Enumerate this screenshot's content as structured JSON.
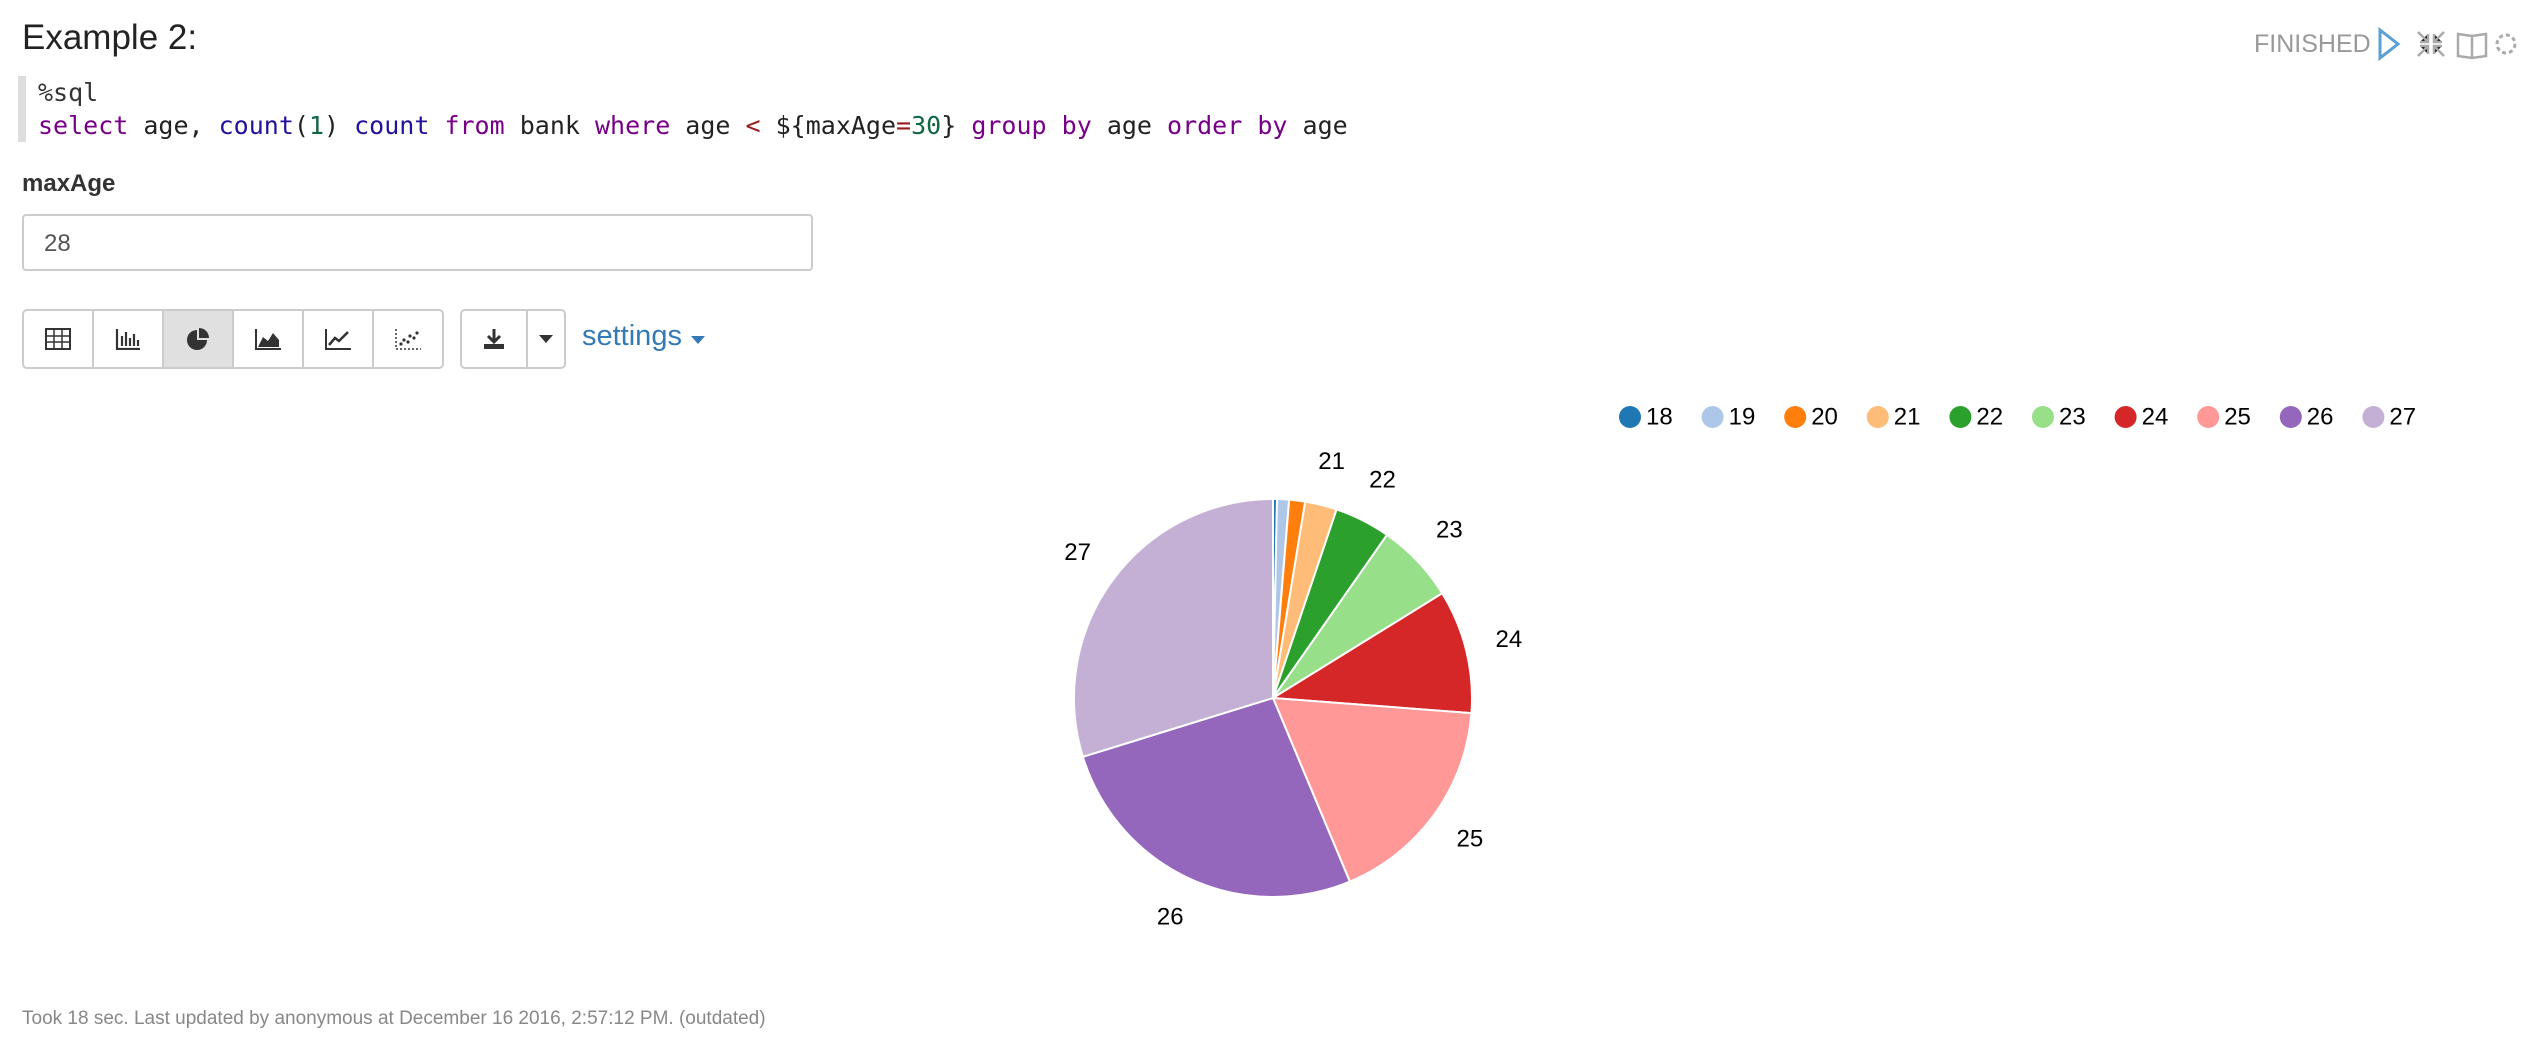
{
  "header": {
    "title": "Example 2:",
    "status": "FINISHED"
  },
  "code": {
    "lines": [
      [
        {
          "text": "%sql",
          "color": "#333333"
        }
      ],
      [
        {
          "text": "select",
          "color": "#770088"
        },
        {
          "text": " age, ",
          "color": "#222222"
        },
        {
          "text": "count",
          "color": "#221199"
        },
        {
          "text": "(",
          "color": "#222222"
        },
        {
          "text": "1",
          "color": "#116644"
        },
        {
          "text": ") ",
          "color": "#222222"
        },
        {
          "text": "count",
          "color": "#221199"
        },
        {
          "text": " ",
          "color": "#222222"
        },
        {
          "text": "from",
          "color": "#770088"
        },
        {
          "text": " bank ",
          "color": "#222222"
        },
        {
          "text": "where",
          "color": "#770088"
        },
        {
          "text": " age ",
          "color": "#222222"
        },
        {
          "text": "<",
          "color": "#981a1a"
        },
        {
          "text": " ${maxAge",
          "color": "#222222"
        },
        {
          "text": "=",
          "color": "#981a1a"
        },
        {
          "text": "30",
          "color": "#116644"
        },
        {
          "text": "} ",
          "color": "#222222"
        },
        {
          "text": "group",
          "color": "#770088"
        },
        {
          "text": " ",
          "color": "#222222"
        },
        {
          "text": "by",
          "color": "#770088"
        },
        {
          "text": " age ",
          "color": "#222222"
        },
        {
          "text": "order",
          "color": "#770088"
        },
        {
          "text": " ",
          "color": "#222222"
        },
        {
          "text": "by",
          "color": "#770088"
        },
        {
          "text": " age",
          "color": "#222222"
        }
      ]
    ]
  },
  "form": {
    "label": "maxAge",
    "value": "28"
  },
  "toolbar": {
    "settings": "settings"
  },
  "chart_data": {
    "type": "pie",
    "categories": [
      "18",
      "19",
      "20",
      "21",
      "22",
      "23",
      "24",
      "25",
      "26",
      "27"
    ],
    "values": [
      1,
      3,
      4,
      8,
      14,
      20,
      31,
      54,
      82,
      92
    ],
    "colors": [
      "#1f77b4",
      "#aec7e8",
      "#ff7f0e",
      "#ffbb78",
      "#2ca02c",
      "#98df8a",
      "#d62728",
      "#ff9896",
      "#9467bd",
      "#c5b0d5"
    ],
    "legend": "top-right"
  },
  "footer": {
    "text": "Took 18 sec. Last updated by anonymous at December 16 2016, 2:57:12 PM. (outdated)"
  }
}
